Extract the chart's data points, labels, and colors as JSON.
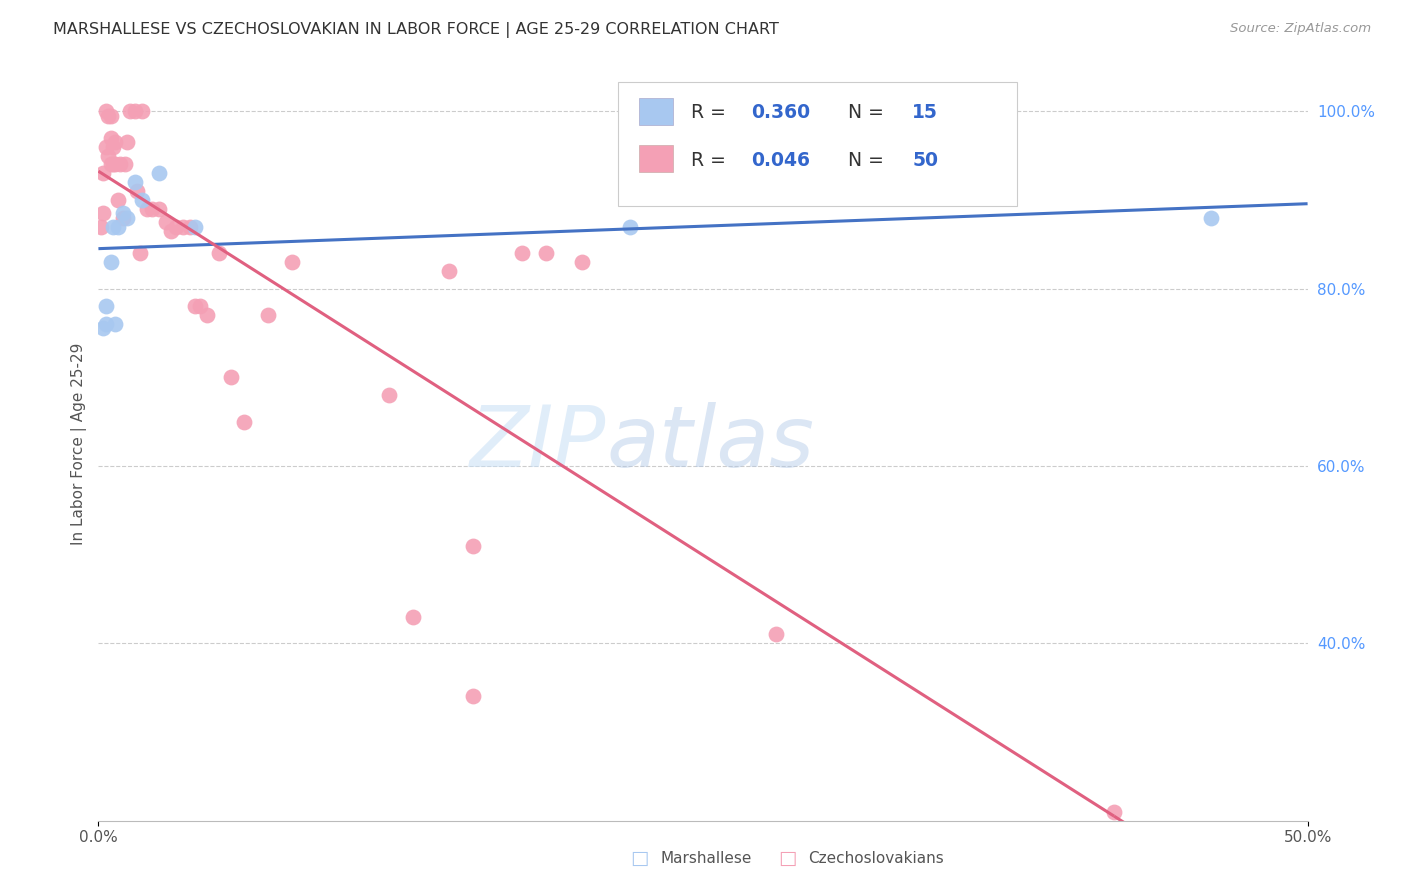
{
  "title": "MARSHALLESE VS CZECHOSLOVAKIAN IN LABOR FORCE | AGE 25-29 CORRELATION CHART",
  "source": "Source: ZipAtlas.com",
  "ylabel": "In Labor Force | Age 25-29",
  "xlim": [
    0.0,
    0.5
  ],
  "ylim": [
    0.2,
    1.05
  ],
  "y_ticks_right": [
    0.4,
    0.6,
    0.8,
    1.0
  ],
  "y_tick_labels_right": [
    "40.0%",
    "60.0%",
    "80.0%",
    "100.0%"
  ],
  "grid_color": "#cccccc",
  "background_color": "#ffffff",
  "marshallese_color": "#a8c8f0",
  "czechoslovakian_color": "#f4a0b5",
  "marshallese_R": 0.36,
  "marshallese_N": 15,
  "czechoslovakian_R": 0.046,
  "czechoslovakian_N": 50,
  "trendline_marshallese_color": "#4472c4",
  "trendline_czechoslovakian_color": "#e06080",
  "watermark_zip": "ZIP",
  "watermark_atlas": "atlas",
  "marshallese_x": [
    0.002,
    0.003,
    0.003,
    0.005,
    0.006,
    0.007,
    0.008,
    0.01,
    0.012,
    0.015,
    0.018,
    0.025,
    0.04,
    0.22,
    0.46
  ],
  "marshallese_y": [
    0.755,
    0.76,
    0.78,
    0.83,
    0.87,
    0.76,
    0.87,
    0.885,
    0.88,
    0.92,
    0.9,
    0.93,
    0.87,
    0.87,
    0.88
  ],
  "czechoslovakian_x": [
    0.001,
    0.002,
    0.002,
    0.003,
    0.003,
    0.004,
    0.004,
    0.005,
    0.005,
    0.005,
    0.006,
    0.006,
    0.007,
    0.007,
    0.008,
    0.009,
    0.01,
    0.011,
    0.012,
    0.013,
    0.015,
    0.016,
    0.017,
    0.018,
    0.02,
    0.022,
    0.025,
    0.028,
    0.03,
    0.032,
    0.035,
    0.038,
    0.04,
    0.042,
    0.045,
    0.05,
    0.055,
    0.06,
    0.07,
    0.08,
    0.12,
    0.13,
    0.145,
    0.155,
    0.175,
    0.185,
    0.2,
    0.28,
    0.155,
    0.42
  ],
  "czechoslovakian_y": [
    0.87,
    0.885,
    0.93,
    0.96,
    1.0,
    0.95,
    0.995,
    0.94,
    0.97,
    0.995,
    0.94,
    0.96,
    0.94,
    0.965,
    0.9,
    0.94,
    0.88,
    0.94,
    0.965,
    1.0,
    1.0,
    0.91,
    0.84,
    1.0,
    0.89,
    0.89,
    0.89,
    0.875,
    0.865,
    0.87,
    0.87,
    0.87,
    0.78,
    0.78,
    0.77,
    0.84,
    0.7,
    0.65,
    0.77,
    0.83,
    0.68,
    0.43,
    0.82,
    0.34,
    0.84,
    0.84,
    0.83,
    0.41,
    0.51,
    0.21
  ]
}
